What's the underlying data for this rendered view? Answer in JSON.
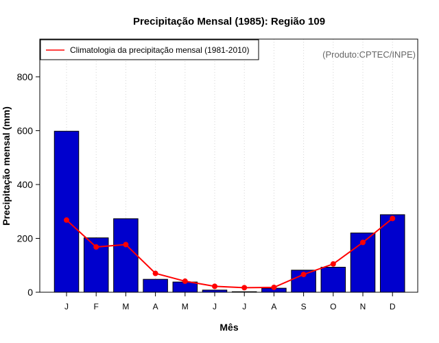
{
  "chart_data": {
    "type": "bar",
    "title": "Precipitação Mensal (1985): Região 109",
    "xlabel": "Mês",
    "ylabel": "Precipitação mensal (mm)",
    "categories": [
      "J",
      "F",
      "M",
      "A",
      "M",
      "J",
      "J",
      "A",
      "S",
      "O",
      "N",
      "D"
    ],
    "ylim": [
      0,
      940
    ],
    "yticks": [
      0,
      200,
      400,
      600,
      800
    ],
    "grid": "vertical-dotted",
    "series": [
      {
        "name": "Precipitação mensal (1985)",
        "kind": "bar",
        "color": "#0000cd",
        "values": [
          598,
          202,
          273,
          48,
          38,
          8,
          2,
          15,
          82,
          93,
          220,
          288
        ]
      },
      {
        "name": "Climatologia da precipitação mensal (1981-2010)",
        "kind": "line",
        "color": "#ff0000",
        "values": [
          268,
          168,
          177,
          70,
          41,
          22,
          17,
          18,
          66,
          105,
          185,
          274
        ]
      }
    ],
    "legend": {
      "position": "top-left",
      "entries": [
        "Climatologia da precipitação mensal (1981-2010)"
      ]
    },
    "annotation": "(Produto:CPTEC/INPE)"
  },
  "colors": {
    "bar": "#0000cd",
    "line": "#ff0000",
    "annotation": "#666666"
  }
}
